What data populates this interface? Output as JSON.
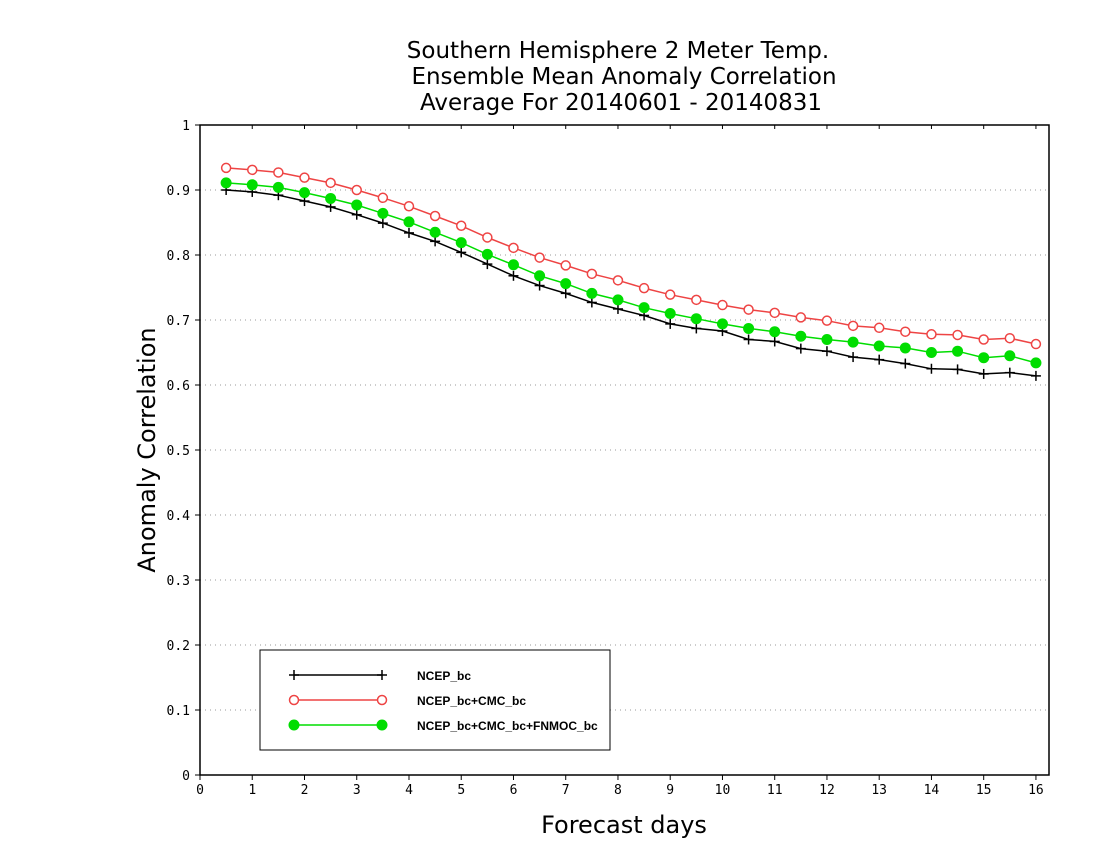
{
  "chart_data": {
    "type": "line",
    "title": [
      "Southern Hemisphere 2 Meter Temp.",
      "Ensemble Mean Anomaly Correlation",
      "Average For 20140601 - 20140831"
    ],
    "xlabel": "Forecast days",
    "ylabel": "Anomaly Correlation",
    "xlim": [
      0,
      16.25
    ],
    "ylim": [
      0,
      1
    ],
    "xticks": [
      0,
      1,
      2,
      3,
      4,
      5,
      6,
      7,
      8,
      9,
      10,
      11,
      12,
      13,
      14,
      15,
      16
    ],
    "xtick_labels": [
      "0",
      "1",
      "2",
      "3",
      "4",
      "5",
      "6",
      "7",
      "8",
      "9",
      "10",
      "11",
      "12",
      "13",
      "14",
      "15",
      "16"
    ],
    "yticks": [
      0,
      0.1,
      0.2,
      0.3,
      0.4,
      0.5,
      0.6,
      0.7,
      0.8,
      0.9,
      1
    ],
    "ytick_labels": [
      "0",
      "0.1",
      "0.2",
      "0.3",
      "0.4",
      "0.5",
      "0.6",
      "0.7",
      "0.8",
      "0.9",
      "1"
    ],
    "grid": true,
    "legend_position": "bottom-left",
    "x": [
      0.5,
      1,
      1.5,
      2,
      2.5,
      3,
      3.5,
      4,
      4.5,
      5,
      5.5,
      6,
      6.5,
      7,
      7.5,
      8,
      8.5,
      9,
      9.5,
      10,
      10.5,
      11,
      11.5,
      12,
      12.5,
      13,
      13.5,
      14,
      14.5,
      15,
      15.5,
      16
    ],
    "series": [
      {
        "name": "NCEP_bc",
        "color": "#000000",
        "marker": "plus",
        "values": [
          0.9,
          0.897,
          0.892,
          0.883,
          0.874,
          0.862,
          0.849,
          0.834,
          0.821,
          0.804,
          0.786,
          0.768,
          0.753,
          0.741,
          0.727,
          0.717,
          0.707,
          0.694,
          0.687,
          0.683,
          0.67,
          0.667,
          0.656,
          0.652,
          0.643,
          0.639,
          0.633,
          0.625,
          0.624,
          0.617,
          0.619,
          0.614
        ]
      },
      {
        "name": "NCEP_bc+CMC_bc",
        "color": "#ee4444",
        "marker": "open-circle",
        "values": [
          0.934,
          0.931,
          0.927,
          0.919,
          0.911,
          0.9,
          0.888,
          0.875,
          0.86,
          0.845,
          0.827,
          0.811,
          0.796,
          0.784,
          0.771,
          0.761,
          0.749,
          0.739,
          0.731,
          0.723,
          0.716,
          0.711,
          0.704,
          0.699,
          0.691,
          0.688,
          0.682,
          0.678,
          0.677,
          0.67,
          0.672,
          0.663
        ]
      },
      {
        "name": "NCEP_bc+CMC_bc+FNMOC_bc",
        "color": "#00dd00",
        "marker": "filled-circle",
        "values": [
          0.911,
          0.908,
          0.904,
          0.896,
          0.887,
          0.877,
          0.864,
          0.851,
          0.835,
          0.819,
          0.801,
          0.785,
          0.768,
          0.756,
          0.741,
          0.731,
          0.719,
          0.71,
          0.702,
          0.694,
          0.687,
          0.682,
          0.675,
          0.67,
          0.666,
          0.66,
          0.657,
          0.65,
          0.652,
          0.642,
          0.645,
          0.634
        ]
      }
    ]
  }
}
